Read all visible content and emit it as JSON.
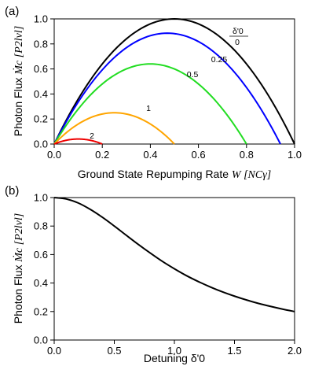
{
  "chart_data": [
    {
      "type": "line",
      "panel_label": "(a)",
      "xlabel": {
        "text": "Ground State Repumping Rate ",
        "var": "W",
        "unit": "[NCγ]"
      },
      "ylabel": {
        "text": "Photon Flux ",
        "var": "Ṁc",
        "unit": "[P2lvl]"
      },
      "xlim": [
        0,
        1.0
      ],
      "ylim": [
        0,
        1.0
      ],
      "xticks": [
        "0.0",
        "0.2",
        "0.4",
        "0.6",
        "0.8",
        "1.0"
      ],
      "yticks": [
        "0.0",
        "0.2",
        "0.4",
        "0.6",
        "0.8",
        "1.0"
      ],
      "legend_title": "δ'0",
      "series": [
        {
          "name": "0",
          "delta": 0,
          "color": "#000000"
        },
        {
          "name": "0.25",
          "delta": 0.25,
          "color": "#0000ff"
        },
        {
          "name": "0.5",
          "delta": 0.5,
          "color": "#22dd22"
        },
        {
          "name": "1",
          "delta": 1,
          "color": "#ffa500"
        },
        {
          "name": "2",
          "delta": 2,
          "color": "#ee0000"
        }
      ],
      "grid": false
    },
    {
      "type": "line",
      "panel_label": "(b)",
      "xlabel": {
        "text": "Detuning δ'0"
      },
      "ylabel": {
        "text": "Photon Flux ",
        "var": "Ṁc",
        "unit": "[P2lvl]"
      },
      "xlim": [
        0,
        2.0
      ],
      "ylim": [
        0,
        1.0
      ],
      "xticks": [
        "0.0",
        "0.5",
        "1.0",
        "1.5",
        "2.0"
      ],
      "yticks": [
        "0.0",
        "0.2",
        "0.4",
        "0.6",
        "0.8",
        "1.0"
      ],
      "series": [
        {
          "color": "#000000",
          "x": [
            0,
            0.1,
            0.2,
            0.3,
            0.4,
            0.5,
            0.6,
            0.7,
            0.8,
            0.9,
            1.0,
            1.1,
            1.2,
            1.3,
            1.4,
            1.5,
            1.6,
            1.7,
            1.8,
            1.9,
            2.0
          ],
          "y": [
            1.0,
            0.99,
            0.962,
            0.917,
            0.862,
            0.8,
            0.735,
            0.671,
            0.61,
            0.552,
            0.5,
            0.452,
            0.41,
            0.372,
            0.338,
            0.308,
            0.281,
            0.257,
            0.236,
            0.217,
            0.2
          ]
        }
      ],
      "grid": false
    }
  ]
}
